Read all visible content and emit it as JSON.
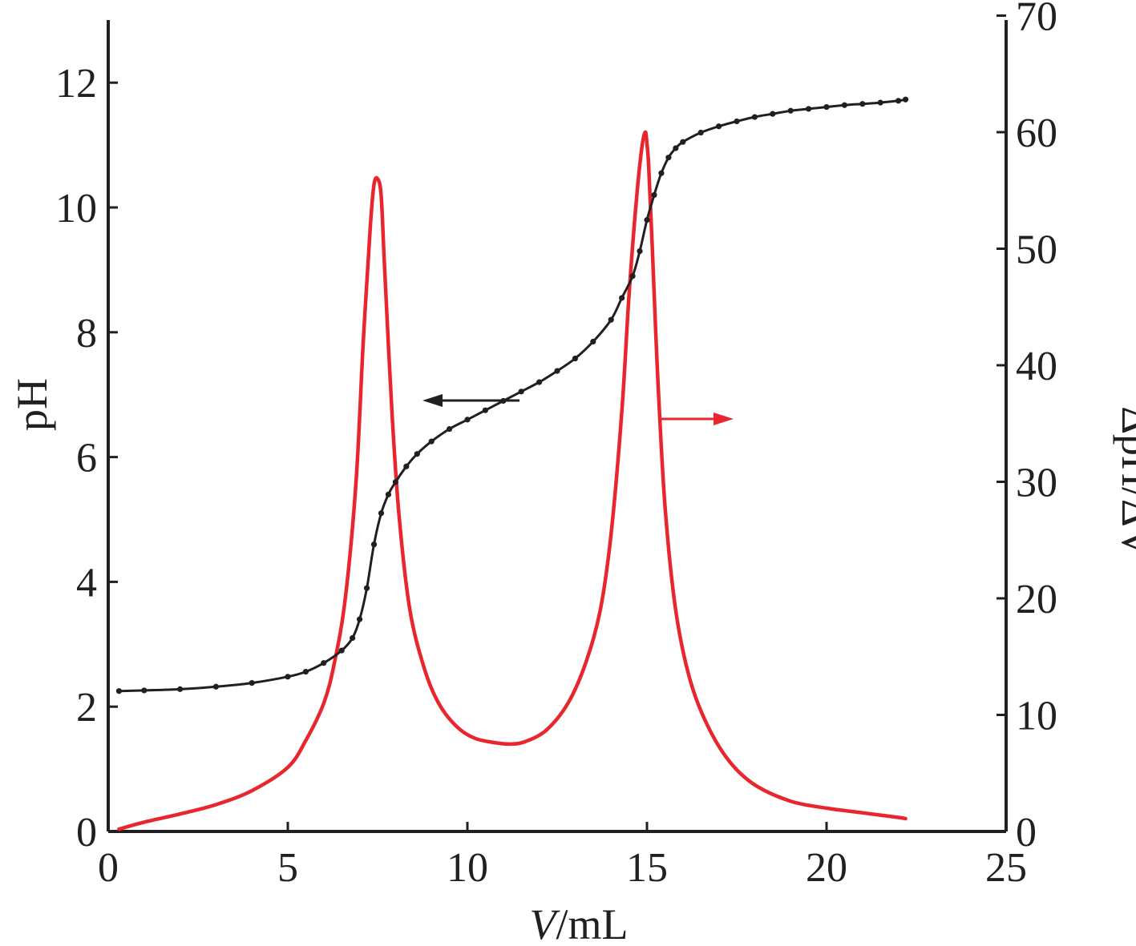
{
  "chart_data": {
    "type": "line",
    "xlabel": {
      "italic": "V",
      "rest": "/mL"
    },
    "ylabel_left": "pH",
    "ylabel_right": "ΔpH/ΔV",
    "xlim": [
      0,
      25
    ],
    "ylim_left": [
      0,
      13
    ],
    "ylim_right": [
      0,
      70
    ],
    "x_ticks": [
      "0",
      "5",
      "10",
      "15",
      "20",
      "25"
    ],
    "y_ticks_left": [
      "0",
      "2",
      "4",
      "6",
      "8",
      "10",
      "12"
    ],
    "y_ticks_right": [
      "0",
      "10",
      "20",
      "30",
      "40",
      "50",
      "60",
      "70"
    ],
    "grid": false,
    "colors": {
      "ph": "#231f20",
      "derivative": "#e8262d",
      "axis": "#231f20"
    },
    "series": [
      {
        "axis": "left",
        "color": "#231f20",
        "marker": "dot",
        "x": [
          0.3,
          1.0,
          2.0,
          3.0,
          4.0,
          5.0,
          5.5,
          6.0,
          6.5,
          6.8,
          7.0,
          7.2,
          7.4,
          7.6,
          7.8,
          8.0,
          8.3,
          8.6,
          9.0,
          9.5,
          10.0,
          10.5,
          11.0,
          11.5,
          12.0,
          12.5,
          13.0,
          13.5,
          14.0,
          14.3,
          14.6,
          14.8,
          15.0,
          15.2,
          15.4,
          15.6,
          15.8,
          16.0,
          16.5,
          17.0,
          17.5,
          18.0,
          18.5,
          19.0,
          19.5,
          20.0,
          20.5,
          21.0,
          21.5,
          22.0,
          22.2
        ],
        "y": [
          2.25,
          2.26,
          2.28,
          2.32,
          2.38,
          2.48,
          2.56,
          2.7,
          2.9,
          3.1,
          3.4,
          3.9,
          4.6,
          5.1,
          5.4,
          5.6,
          5.85,
          6.05,
          6.25,
          6.45,
          6.6,
          6.75,
          6.9,
          7.05,
          7.2,
          7.38,
          7.58,
          7.85,
          8.2,
          8.55,
          8.9,
          9.3,
          9.8,
          10.2,
          10.55,
          10.8,
          10.95,
          11.05,
          11.2,
          11.3,
          11.38,
          11.45,
          11.5,
          11.55,
          11.58,
          11.61,
          11.64,
          11.66,
          11.68,
          11.71,
          11.73
        ]
      },
      {
        "axis": "right",
        "color": "#e8262d",
        "marker": "none",
        "x": [
          0.3,
          1.0,
          2.0,
          3.0,
          4.0,
          5.0,
          5.5,
          6.0,
          6.3,
          6.6,
          6.9,
          7.1,
          7.3,
          7.4,
          7.5,
          7.6,
          7.7,
          7.9,
          8.1,
          8.4,
          8.8,
          9.2,
          9.7,
          10.2,
          10.8,
          11.2,
          11.6,
          12.2,
          12.8,
          13.3,
          13.7,
          14.0,
          14.3,
          14.5,
          14.7,
          14.85,
          14.95,
          15.0,
          15.05,
          15.15,
          15.3,
          15.5,
          15.8,
          16.2,
          16.7,
          17.3,
          18.0,
          19.0,
          20.0,
          21.0,
          22.0,
          22.2
        ],
        "y": [
          0.2,
          0.8,
          1.5,
          2.3,
          3.5,
          5.5,
          7.8,
          11.0,
          14.5,
          20.0,
          30.0,
          42.0,
          52.0,
          55.5,
          56.0,
          54.5,
          48.0,
          36.0,
          27.0,
          19.0,
          14.0,
          11.0,
          9.0,
          8.0,
          7.6,
          7.5,
          7.7,
          8.7,
          11.0,
          14.5,
          19.0,
          25.5,
          36.0,
          46.0,
          54.0,
          58.5,
          60.0,
          59.0,
          57.0,
          50.0,
          39.0,
          28.0,
          19.0,
          13.0,
          9.0,
          6.0,
          4.0,
          2.6,
          2.0,
          1.6,
          1.2,
          1.1
        ]
      }
    ]
  }
}
